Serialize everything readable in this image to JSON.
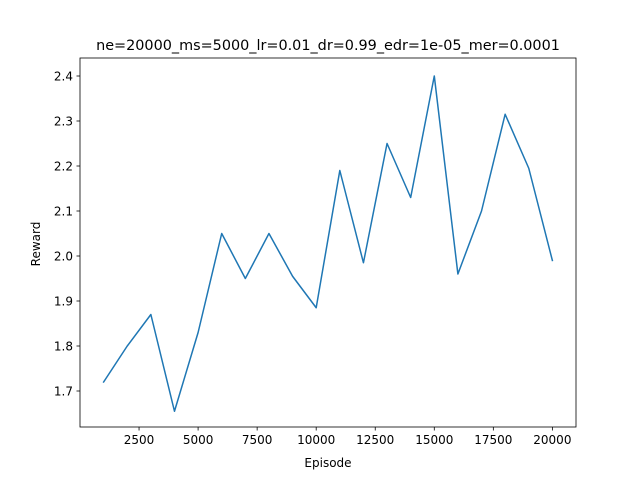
{
  "chart_data": {
    "type": "line",
    "title": "ne=20000_ms=5000_lr=0.01_dr=0.99_edr=1e-05_mer=0.0001",
    "xlabel": "Episode",
    "ylabel": "Reward",
    "xlim": [
      0,
      21000
    ],
    "ylim": [
      1.62,
      2.44
    ],
    "grid": false,
    "line_color": "#1f77b4",
    "x_ticks": [
      2500,
      5000,
      7500,
      10000,
      12500,
      15000,
      17500,
      20000
    ],
    "x_tick_labels": [
      "2500",
      "5000",
      "7500",
      "10000",
      "12500",
      "15000",
      "17500",
      "20000"
    ],
    "y_ticks": [
      1.7,
      1.8,
      1.9,
      2.0,
      2.1,
      2.2,
      2.3,
      2.4
    ],
    "y_tick_labels": [
      "1.7",
      "1.8",
      "1.9",
      "2.0",
      "2.1",
      "2.2",
      "2.3",
      "2.4"
    ],
    "series": [
      {
        "x": [
          1000,
          2000,
          3000,
          4000,
          5000,
          6000,
          7000,
          8000,
          9000,
          10000,
          11000,
          12000,
          13000,
          14000,
          15000,
          16000,
          17000,
          18000,
          19000,
          20000
        ],
        "y": [
          1.72,
          1.8,
          1.87,
          1.655,
          1.83,
          2.05,
          1.95,
          2.05,
          1.955,
          1.885,
          2.19,
          1.985,
          2.25,
          2.13,
          2.4,
          1.96,
          2.1,
          2.315,
          2.195,
          1.99
        ]
      }
    ]
  }
}
